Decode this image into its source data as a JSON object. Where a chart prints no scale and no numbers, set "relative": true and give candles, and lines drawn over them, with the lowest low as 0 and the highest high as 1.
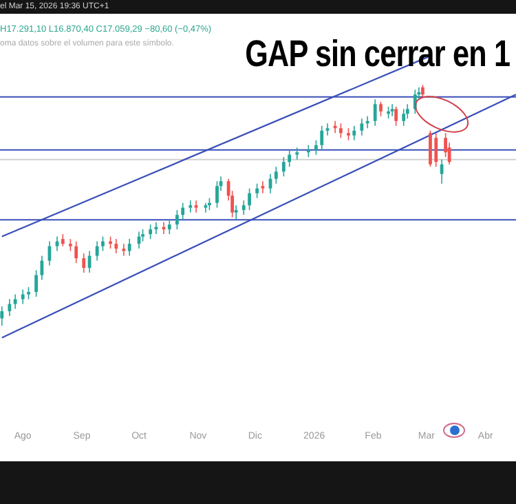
{
  "chart_data": {
    "type": "candlestick",
    "title": "GAP sin cerrar en 1",
    "relative": true,
    "legend": false,
    "grid": false,
    "tick_labels": "x",
    "annotations": [
      "el Mar 15, 2026 19:36 UTC+1",
      "H17.291,10 L16.870,40 C17.059,29 −80,60 (−0,47%)",
      "oma datos sobre el volumen para este símbolo."
    ],
    "xlim": [
      "2025-07-20",
      "2026-04-17"
    ],
    "xticks": [
      {
        "value": "2025-08-01",
        "label": "Ago"
      },
      {
        "value": "2025-09-01",
        "label": "Sep"
      },
      {
        "value": "2025-10-01",
        "label": "Oct"
      },
      {
        "value": "2025-11-01",
        "label": "Nov"
      },
      {
        "value": "2025-12-01",
        "label": "Dic"
      },
      {
        "value": "2026-01-01",
        "label": "2026"
      },
      {
        "value": "2026-02-01",
        "label": "Feb"
      },
      {
        "value": "2026-03-01",
        "label": "Mar"
      },
      {
        "value": "2026-04-01",
        "label": "Abr"
      }
    ],
    "x": [
      "2025-07-21",
      "2025-07-25",
      "2025-07-28",
      "2025-08-01",
      "2025-08-04",
      "2025-08-08",
      "2025-08-11",
      "2025-08-15",
      "2025-08-19",
      "2025-08-22",
      "2025-08-26",
      "2025-08-29",
      "2025-09-02",
      "2025-09-05",
      "2025-09-09",
      "2025-09-12",
      "2025-09-16",
      "2025-09-19",
      "2025-09-23",
      "2025-09-26",
      "2025-10-01",
      "2025-10-03",
      "2025-10-07",
      "2025-10-10",
      "2025-10-14",
      "2025-10-17",
      "2025-10-21",
      "2025-10-24",
      "2025-10-28",
      "2025-10-31",
      "2025-11-05",
      "2025-11-07",
      "2025-11-11",
      "2025-11-13",
      "2025-11-17",
      "2025-11-19",
      "2025-11-21",
      "2025-11-25",
      "2025-11-28",
      "2025-12-02",
      "2025-12-05",
      "2025-12-09",
      "2025-12-12",
      "2025-12-16",
      "2025-12-19",
      "2025-12-23",
      "2025-12-29",
      "2026-01-02",
      "2026-01-05",
      "2026-01-08",
      "2026-01-12",
      "2026-01-15",
      "2026-01-19",
      "2026-01-22",
      "2026-01-26",
      "2026-01-29",
      "2026-02-02",
      "2026-02-05",
      "2026-02-09",
      "2026-02-11",
      "2026-02-13",
      "2026-02-17",
      "2026-02-19",
      "2026-02-23",
      "2026-02-25",
      "2026-02-27",
      "2026-03-03",
      "2026-03-06",
      "2026-03-09",
      "2026-03-11",
      "2026-03-13"
    ],
    "ohlc": [
      [
        0.03,
        0.08,
        0,
        0.06
      ],
      [
        0.06,
        0.11,
        0.04,
        0.09
      ],
      [
        0.09,
        0.13,
        0.07,
        0.11
      ],
      [
        0.11,
        0.15,
        0.09,
        0.13
      ],
      [
        0.13,
        0.16,
        0.11,
        0.14
      ],
      [
        0.14,
        0.23,
        0.12,
        0.21
      ],
      [
        0.21,
        0.29,
        0.19,
        0.27
      ],
      [
        0.27,
        0.35,
        0.25,
        0.33
      ],
      [
        0.33,
        0.37,
        0.31,
        0.35
      ],
      [
        0.36,
        0.38,
        0.33,
        0.34
      ],
      [
        0.34,
        0.36,
        0.31,
        0.33
      ],
      [
        0.33,
        0.35,
        0.26,
        0.28
      ],
      [
        0.28,
        0.3,
        0.22,
        0.24
      ],
      [
        0.24,
        0.31,
        0.22,
        0.29
      ],
      [
        0.29,
        0.35,
        0.27,
        0.33
      ],
      [
        0.33,
        0.37,
        0.31,
        0.35
      ],
      [
        0.35,
        0.37,
        0.32,
        0.34
      ],
      [
        0.34,
        0.36,
        0.3,
        0.32
      ],
      [
        0.32,
        0.34,
        0.29,
        0.31
      ],
      [
        0.31,
        0.36,
        0.29,
        0.34
      ],
      [
        0.34,
        0.39,
        0.32,
        0.37
      ],
      [
        0.37,
        0.4,
        0.35,
        0.38
      ],
      [
        0.38,
        0.42,
        0.36,
        0.4
      ],
      [
        0.4,
        0.43,
        0.38,
        0.41
      ],
      [
        0.41,
        0.43,
        0.38,
        0.4
      ],
      [
        0.4,
        0.44,
        0.38,
        0.42
      ],
      [
        0.42,
        0.48,
        0.4,
        0.46
      ],
      [
        0.46,
        0.51,
        0.44,
        0.49
      ],
      [
        0.49,
        0.52,
        0.47,
        0.5
      ],
      [
        0.5,
        0.52,
        0.47,
        0.49
      ],
      [
        0.49,
        0.51,
        0.47,
        0.5
      ],
      [
        0.5,
        0.53,
        0.48,
        0.51
      ],
      [
        0.51,
        0.6,
        0.49,
        0.58
      ],
      [
        0.58,
        0.62,
        0.56,
        0.6
      ],
      [
        0.6,
        0.61,
        0.52,
        0.54
      ],
      [
        0.54,
        0.56,
        0.45,
        0.47
      ],
      [
        0.47,
        0.5,
        0.44,
        0.48
      ],
      [
        0.48,
        0.52,
        0.46,
        0.5
      ],
      [
        0.5,
        0.57,
        0.48,
        0.55
      ],
      [
        0.55,
        0.59,
        0.53,
        0.57
      ],
      [
        0.58,
        0.6,
        0.55,
        0.57
      ],
      [
        0.57,
        0.63,
        0.55,
        0.61
      ],
      [
        0.61,
        0.66,
        0.59,
        0.64
      ],
      [
        0.64,
        0.7,
        0.62,
        0.68
      ],
      [
        0.68,
        0.73,
        0.66,
        0.71
      ],
      [
        0.71,
        0.74,
        0.69,
        0.72
      ],
      [
        0.72,
        0.75,
        0.7,
        0.73
      ],
      [
        0.73,
        0.77,
        0.71,
        0.75
      ],
      [
        0.75,
        0.83,
        0.73,
        0.81
      ],
      [
        0.81,
        0.84,
        0.79,
        0.82
      ],
      [
        0.83,
        0.85,
        0.8,
        0.82
      ],
      [
        0.82,
        0.84,
        0.78,
        0.8
      ],
      [
        0.8,
        0.82,
        0.77,
        0.79
      ],
      [
        0.79,
        0.83,
        0.77,
        0.81
      ],
      [
        0.81,
        0.86,
        0.79,
        0.84
      ],
      [
        0.84,
        0.87,
        0.82,
        0.85
      ],
      [
        0.85,
        0.94,
        0.83,
        0.92
      ],
      [
        0.92,
        0.93,
        0.87,
        0.89
      ],
      [
        0.88,
        0.91,
        0.86,
        0.89
      ],
      [
        0.89,
        0.92,
        0.87,
        0.9
      ],
      [
        0.9,
        0.91,
        0.83,
        0.85
      ],
      [
        0.85,
        0.9,
        0.83,
        0.88
      ],
      [
        0.88,
        0.92,
        0.86,
        0.9
      ],
      [
        0.9,
        0.98,
        0.88,
        0.96
      ],
      [
        0.96,
        0.99,
        0.94,
        0.97
      ],
      [
        0.99,
        1,
        0.95,
        0.96
      ],
      [
        0.8,
        0.81,
        0.66,
        0.67
      ],
      [
        0.78,
        0.8,
        0.66,
        0.68
      ],
      [
        0.63,
        0.69,
        0.59,
        0.67
      ],
      [
        0.78,
        0.8,
        0.7,
        0.72
      ],
      [
        0.74,
        0.76,
        0.67,
        0.68
      ]
    ],
    "series": [
      {
        "type": "line",
        "color": "#3a4fb8",
        "x": [
          "2025-07-21",
          "2026-03-03"
        ],
        "values": [
          0.37,
          1.12
        ]
      },
      {
        "type": "line",
        "color": "#3a4fb8",
        "x": [
          "2025-07-21",
          "2026-04-17"
        ],
        "values": [
          -0.05,
          0.96
        ]
      }
    ],
    "ref_lines": [
      {
        "axis": "y",
        "value": 0.95,
        "color": "#3a4fb8"
      },
      {
        "axis": "y",
        "value": 0.73,
        "color": "#3a4fb8"
      },
      {
        "axis": "y",
        "value": 0.69,
        "color": "#d0d0d0"
      },
      {
        "axis": "y",
        "value": 0.44,
        "color": "#3a4fb8"
      }
    ]
  }
}
